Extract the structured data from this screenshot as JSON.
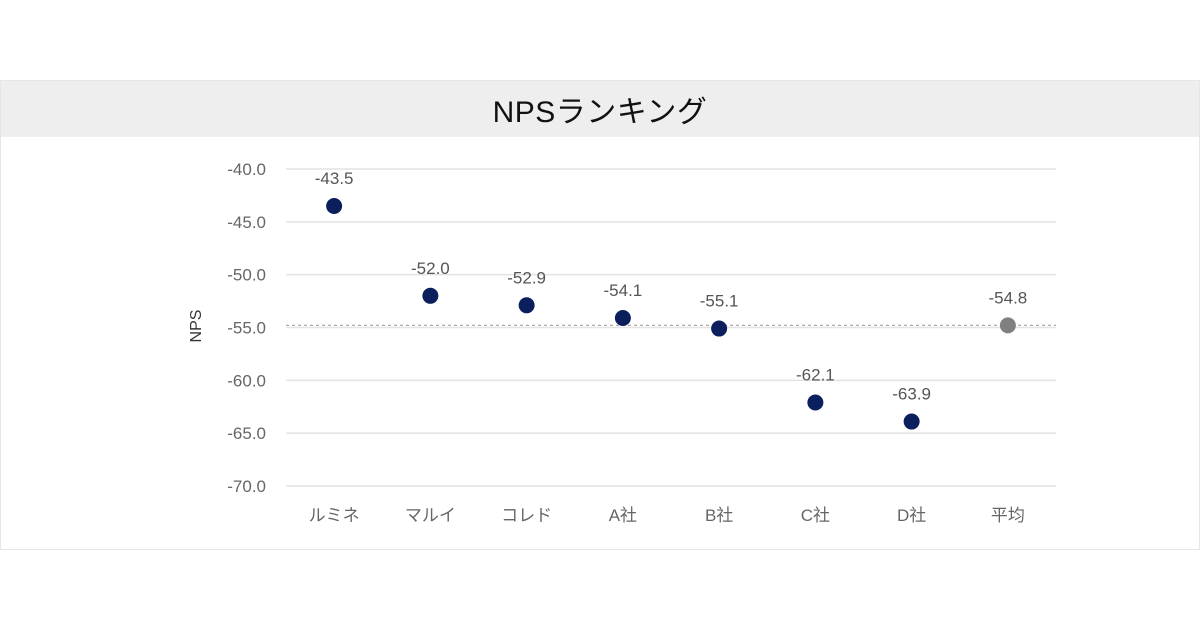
{
  "chart_data": {
    "type": "scatter",
    "title": "NPSランキング",
    "ylabel": "NPS",
    "xlabel": "",
    "categories": [
      "ルミネ",
      "マルイ",
      "コレド",
      "A社",
      "B社",
      "C社",
      "D社",
      "平均"
    ],
    "values": [
      -43.5,
      -52.0,
      -52.9,
      -54.1,
      -55.1,
      -62.1,
      -63.9,
      -54.8
    ],
    "value_labels": [
      "-43.5",
      "-52.0",
      "-52.9",
      "-54.1",
      "-55.1",
      "-62.1",
      "-63.9",
      "-54.8"
    ],
    "point_colors": [
      "#0b1f5c",
      "#0b1f5c",
      "#0b1f5c",
      "#0b1f5c",
      "#0b1f5c",
      "#0b1f5c",
      "#0b1f5c",
      "#808080"
    ],
    "ylim": [
      -70,
      -40
    ],
    "yticks": [
      -40,
      -45,
      -50,
      -55,
      -60,
      -65,
      -70
    ],
    "ytick_labels": [
      "-40.0",
      "-45.0",
      "-50.0",
      "-55.0",
      "-60.0",
      "-65.0",
      "-70.0"
    ],
    "reference_line": -54.8,
    "reference_line_color": "#aaaaaa",
    "grid": true,
    "grid_color": "#e3e3e3",
    "legend": "none"
  }
}
